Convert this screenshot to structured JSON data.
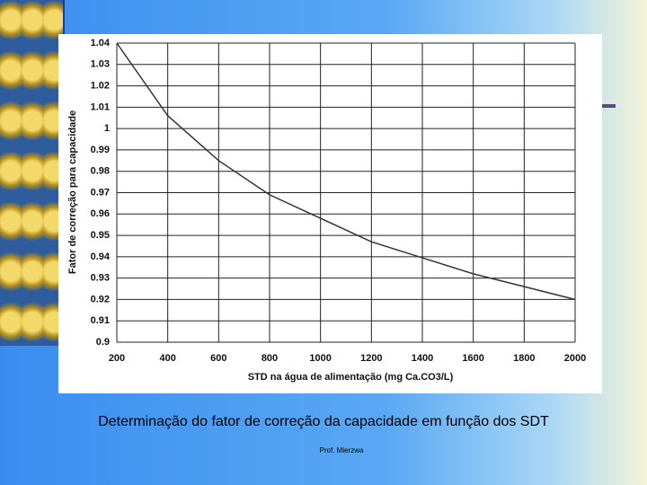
{
  "chart_data": {
    "type": "line",
    "ylabel": "Fator de correção para capacidade",
    "xlabel": "STD na água de alimentação (mg Ca.CO3/L)",
    "x": [
      200,
      400,
      600,
      800,
      1000,
      1200,
      1400,
      1600,
      1800,
      2000
    ],
    "values": [
      1.04,
      1.006,
      0.985,
      0.969,
      0.958,
      0.947,
      0.9395,
      0.932,
      0.926,
      0.92
    ],
    "color": "#333333",
    "xlim": [
      200,
      2000
    ],
    "xticks": [
      200,
      400,
      600,
      800,
      1000,
      1200,
      1400,
      1600,
      1800,
      2000
    ],
    "ylim": [
      0.9,
      1.04
    ],
    "yticks": [
      0.9,
      0.91,
      0.92,
      0.93,
      0.94,
      0.95,
      0.96,
      0.97,
      0.98,
      0.99,
      1,
      1.01,
      1.02,
      1.03,
      1.04
    ],
    "grid": true
  },
  "caption": "Determinação do fator de correção da capacidade em função dos SDT",
  "footer": "Prof. Mierzwa"
}
